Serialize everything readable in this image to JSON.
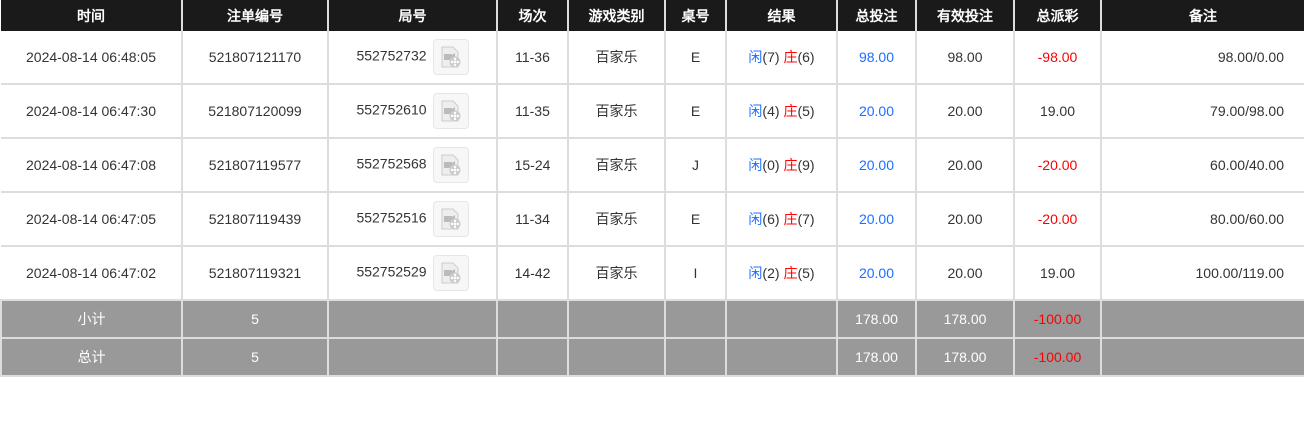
{
  "headers": [
    "时间",
    "注单编号",
    "局号",
    "场次",
    "游戏类别",
    "桌号",
    "结果",
    "总投注",
    "有效投注",
    "总派彩",
    "备注"
  ],
  "colors": {
    "header_bg": "#1a1a1a",
    "bet": "#1e6fff",
    "negative": "#ff0000",
    "summary_bg": "#999999"
  },
  "rows": [
    {
      "time": "2024-08-14 06:48:05",
      "bet_id": "521807121170",
      "round": "552752732",
      "session": "11-36",
      "game": "百家乐",
      "table": "E",
      "player": "闲",
      "player_val": "(7)",
      "banker": "庄",
      "banker_val": "(6)",
      "total": "98.00",
      "valid": "98.00",
      "payout": "-98.00",
      "negative": true,
      "remark": "98.00/0.00"
    },
    {
      "time": "2024-08-14 06:47:30",
      "bet_id": "521807120099",
      "round": "552752610",
      "session": "11-35",
      "game": "百家乐",
      "table": "E",
      "player": "闲",
      "player_val": "(4)",
      "banker": "庄",
      "banker_val": "(5)",
      "total": "20.00",
      "valid": "20.00",
      "payout": "19.00",
      "negative": false,
      "remark": "79.00/98.00"
    },
    {
      "time": "2024-08-14 06:47:08",
      "bet_id": "521807119577",
      "round": "552752568",
      "session": "15-24",
      "game": "百家乐",
      "table": "J",
      "player": "闲",
      "player_val": "(0)",
      "banker": "庄",
      "banker_val": "(9)",
      "total": "20.00",
      "valid": "20.00",
      "payout": "-20.00",
      "negative": true,
      "remark": "60.00/40.00"
    },
    {
      "time": "2024-08-14 06:47:05",
      "bet_id": "521807119439",
      "round": "552752516",
      "session": "11-34",
      "game": "百家乐",
      "table": "E",
      "player": "闲",
      "player_val": "(6)",
      "banker": "庄",
      "banker_val": "(7)",
      "total": "20.00",
      "valid": "20.00",
      "payout": "-20.00",
      "negative": true,
      "remark": "80.00/60.00"
    },
    {
      "time": "2024-08-14 06:47:02",
      "bet_id": "521807119321",
      "round": "552752529",
      "session": "14-42",
      "game": "百家乐",
      "table": "I",
      "player": "闲",
      "player_val": "(2)",
      "banker": "庄",
      "banker_val": "(5)",
      "total": "20.00",
      "valid": "20.00",
      "payout": "19.00",
      "negative": false,
      "remark": "100.00/119.00"
    }
  ],
  "summary": [
    {
      "label": "小计",
      "count": "5",
      "total": "178.00",
      "valid": "178.00",
      "payout": "-100.00"
    },
    {
      "label": "总计",
      "count": "5",
      "total": "178.00",
      "valid": "178.00",
      "payout": "-100.00"
    }
  ]
}
